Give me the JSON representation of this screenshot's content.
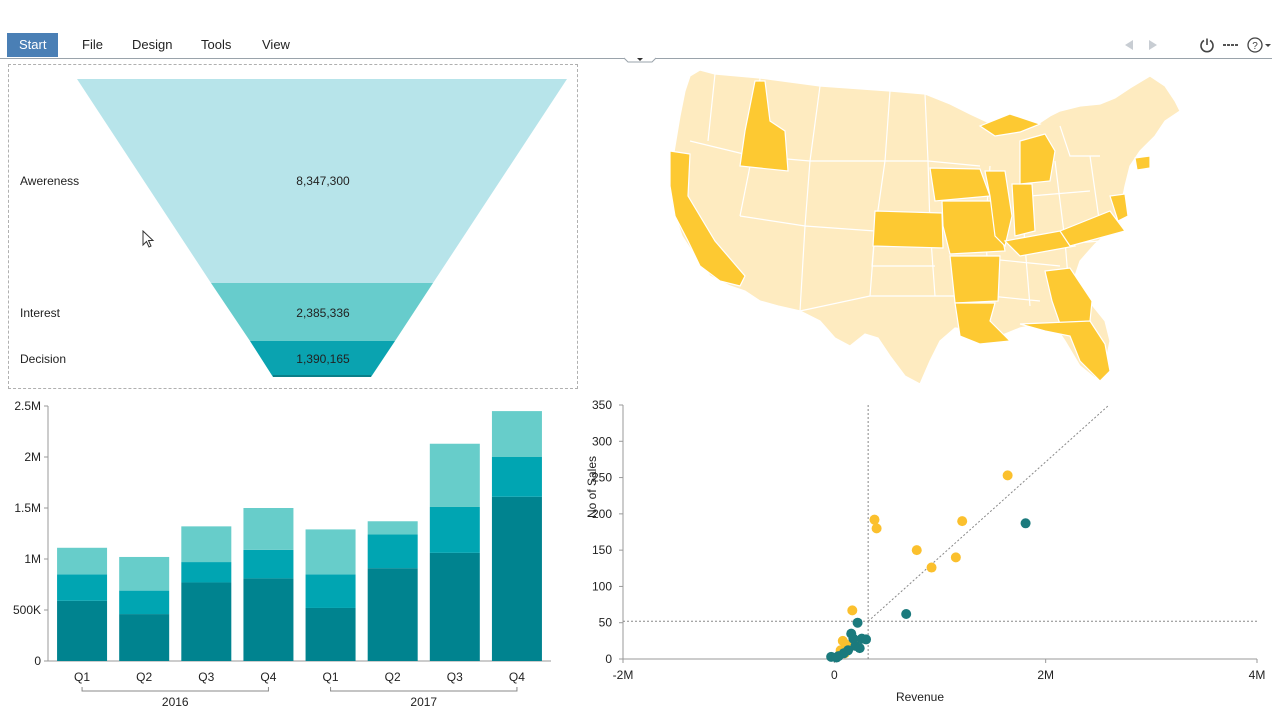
{
  "ribbon": {
    "tabs": [
      "Start",
      "File",
      "Design",
      "Tools",
      "View"
    ],
    "active_tab": "Start",
    "icons": [
      "back-arrow-icon",
      "forward-arrow-icon",
      "power-icon",
      "more-icon",
      "help-icon"
    ]
  },
  "funnel": {
    "stages": [
      {
        "label": "Awereness",
        "value": "8,347,300",
        "color": "#b7e4ea"
      },
      {
        "label": "Interest",
        "value": "2,385,336",
        "color": "#67cccc"
      },
      {
        "label": "Decision",
        "value": "1,390,165",
        "color": "#0aa3b0"
      }
    ]
  },
  "map": {
    "highlight_color": "#fdc932",
    "base_color": "#feebc0"
  },
  "chart_data": [
    {
      "type": "bar",
      "stacked": true,
      "categories": [
        "Q1",
        "Q2",
        "Q3",
        "Q4",
        "Q1",
        "Q2",
        "Q3",
        "Q4"
      ],
      "groups": [
        {
          "label": "2016",
          "span": [
            0,
            3
          ]
        },
        {
          "label": "2017",
          "span": [
            4,
            7
          ]
        }
      ],
      "series": [
        {
          "values": [
            590000,
            460000,
            770000,
            810000,
            520000,
            910000,
            1060000,
            1610000
          ],
          "color": "#00838f"
        },
        {
          "values": [
            260000,
            230000,
            200000,
            280000,
            330000,
            330000,
            450000,
            390000
          ],
          "color": "#00a5b2"
        },
        {
          "values": [
            260000,
            330000,
            350000,
            410000,
            440000,
            130000,
            620000,
            450000
          ],
          "color": "#67cdca"
        }
      ],
      "yticks": [
        "0",
        "500K",
        "1M",
        "1.5M",
        "2M",
        "2.5M"
      ],
      "ylim": [
        0,
        2500000
      ]
    },
    {
      "type": "scatter",
      "xlabel": "Revenue",
      "ylabel": "No of Sales",
      "xticks": [
        "-2M",
        "0",
        "2M",
        "4M"
      ],
      "yticks": [
        "0",
        "50",
        "100",
        "150",
        "200",
        "250",
        "300",
        "350"
      ],
      "xlim": [
        -2000000,
        4000000
      ],
      "ylim": [
        0,
        350
      ],
      "reference_x": 320000,
      "reference_y": 52,
      "trendline": [
        [
          320000,
          52
        ],
        [
          2600000,
          350
        ]
      ],
      "series": [
        {
          "color": "#fbc02d",
          "points": [
            [
              380000,
              192
            ],
            [
              400000,
              180
            ],
            [
              170000,
              67
            ],
            [
              780000,
              150
            ],
            [
              920000,
              126
            ],
            [
              1150000,
              140
            ],
            [
              1210000,
              190
            ],
            [
              1640000,
              253
            ],
            [
              80000,
              25
            ],
            [
              110000,
              20
            ],
            [
              140000,
              18
            ],
            [
              60000,
              12
            ],
            [
              100000,
              8
            ],
            [
              50000,
              6
            ],
            [
              200000,
              22
            ]
          ]
        },
        {
          "color": "#1b7a7d",
          "points": [
            [
              680000,
              62
            ],
            [
              1810000,
              187
            ],
            [
              220000,
              50
            ],
            [
              160000,
              35
            ],
            [
              260000,
              28
            ],
            [
              300000,
              27
            ],
            [
              200000,
              18
            ],
            [
              240000,
              15
            ],
            [
              130000,
              12
            ],
            [
              90000,
              8
            ],
            [
              40000,
              4
            ],
            [
              -30000,
              3
            ],
            [
              20000,
              2
            ],
            [
              180000,
              28
            ]
          ]
        }
      ]
    }
  ]
}
